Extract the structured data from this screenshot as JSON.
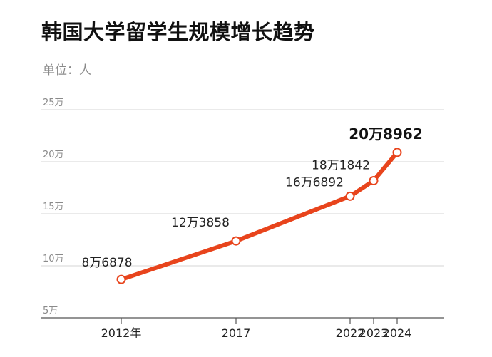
{
  "title": "韩国大学留学生规模增长趋势",
  "unit_text": "单位：人",
  "colors": {
    "line": "#e8441c",
    "grid": "#d6d6d6",
    "axis": "#555555"
  },
  "chart_data": {
    "type": "line",
    "title": "韩国大学留学生规模增长趋势",
    "unit": "单位：人",
    "x": [
      2012,
      2017,
      2022,
      2023,
      2024
    ],
    "x_tick_labels": [
      "2012年",
      "2017",
      "2022",
      "2023",
      "2024"
    ],
    "values": [
      86878,
      123858,
      166892,
      181842,
      208962
    ],
    "data_labels": [
      "8万6878",
      "12万3858",
      "16万6892",
      "18万1842",
      "20万8962"
    ],
    "highlight_last": true,
    "ylim": [
      50000,
      250000
    ],
    "y_ticks": [
      50000,
      100000,
      150000,
      200000,
      250000
    ],
    "y_tick_labels": [
      "5万",
      "10万",
      "15万",
      "20万",
      "25万"
    ],
    "grid": true,
    "legend": "none"
  }
}
